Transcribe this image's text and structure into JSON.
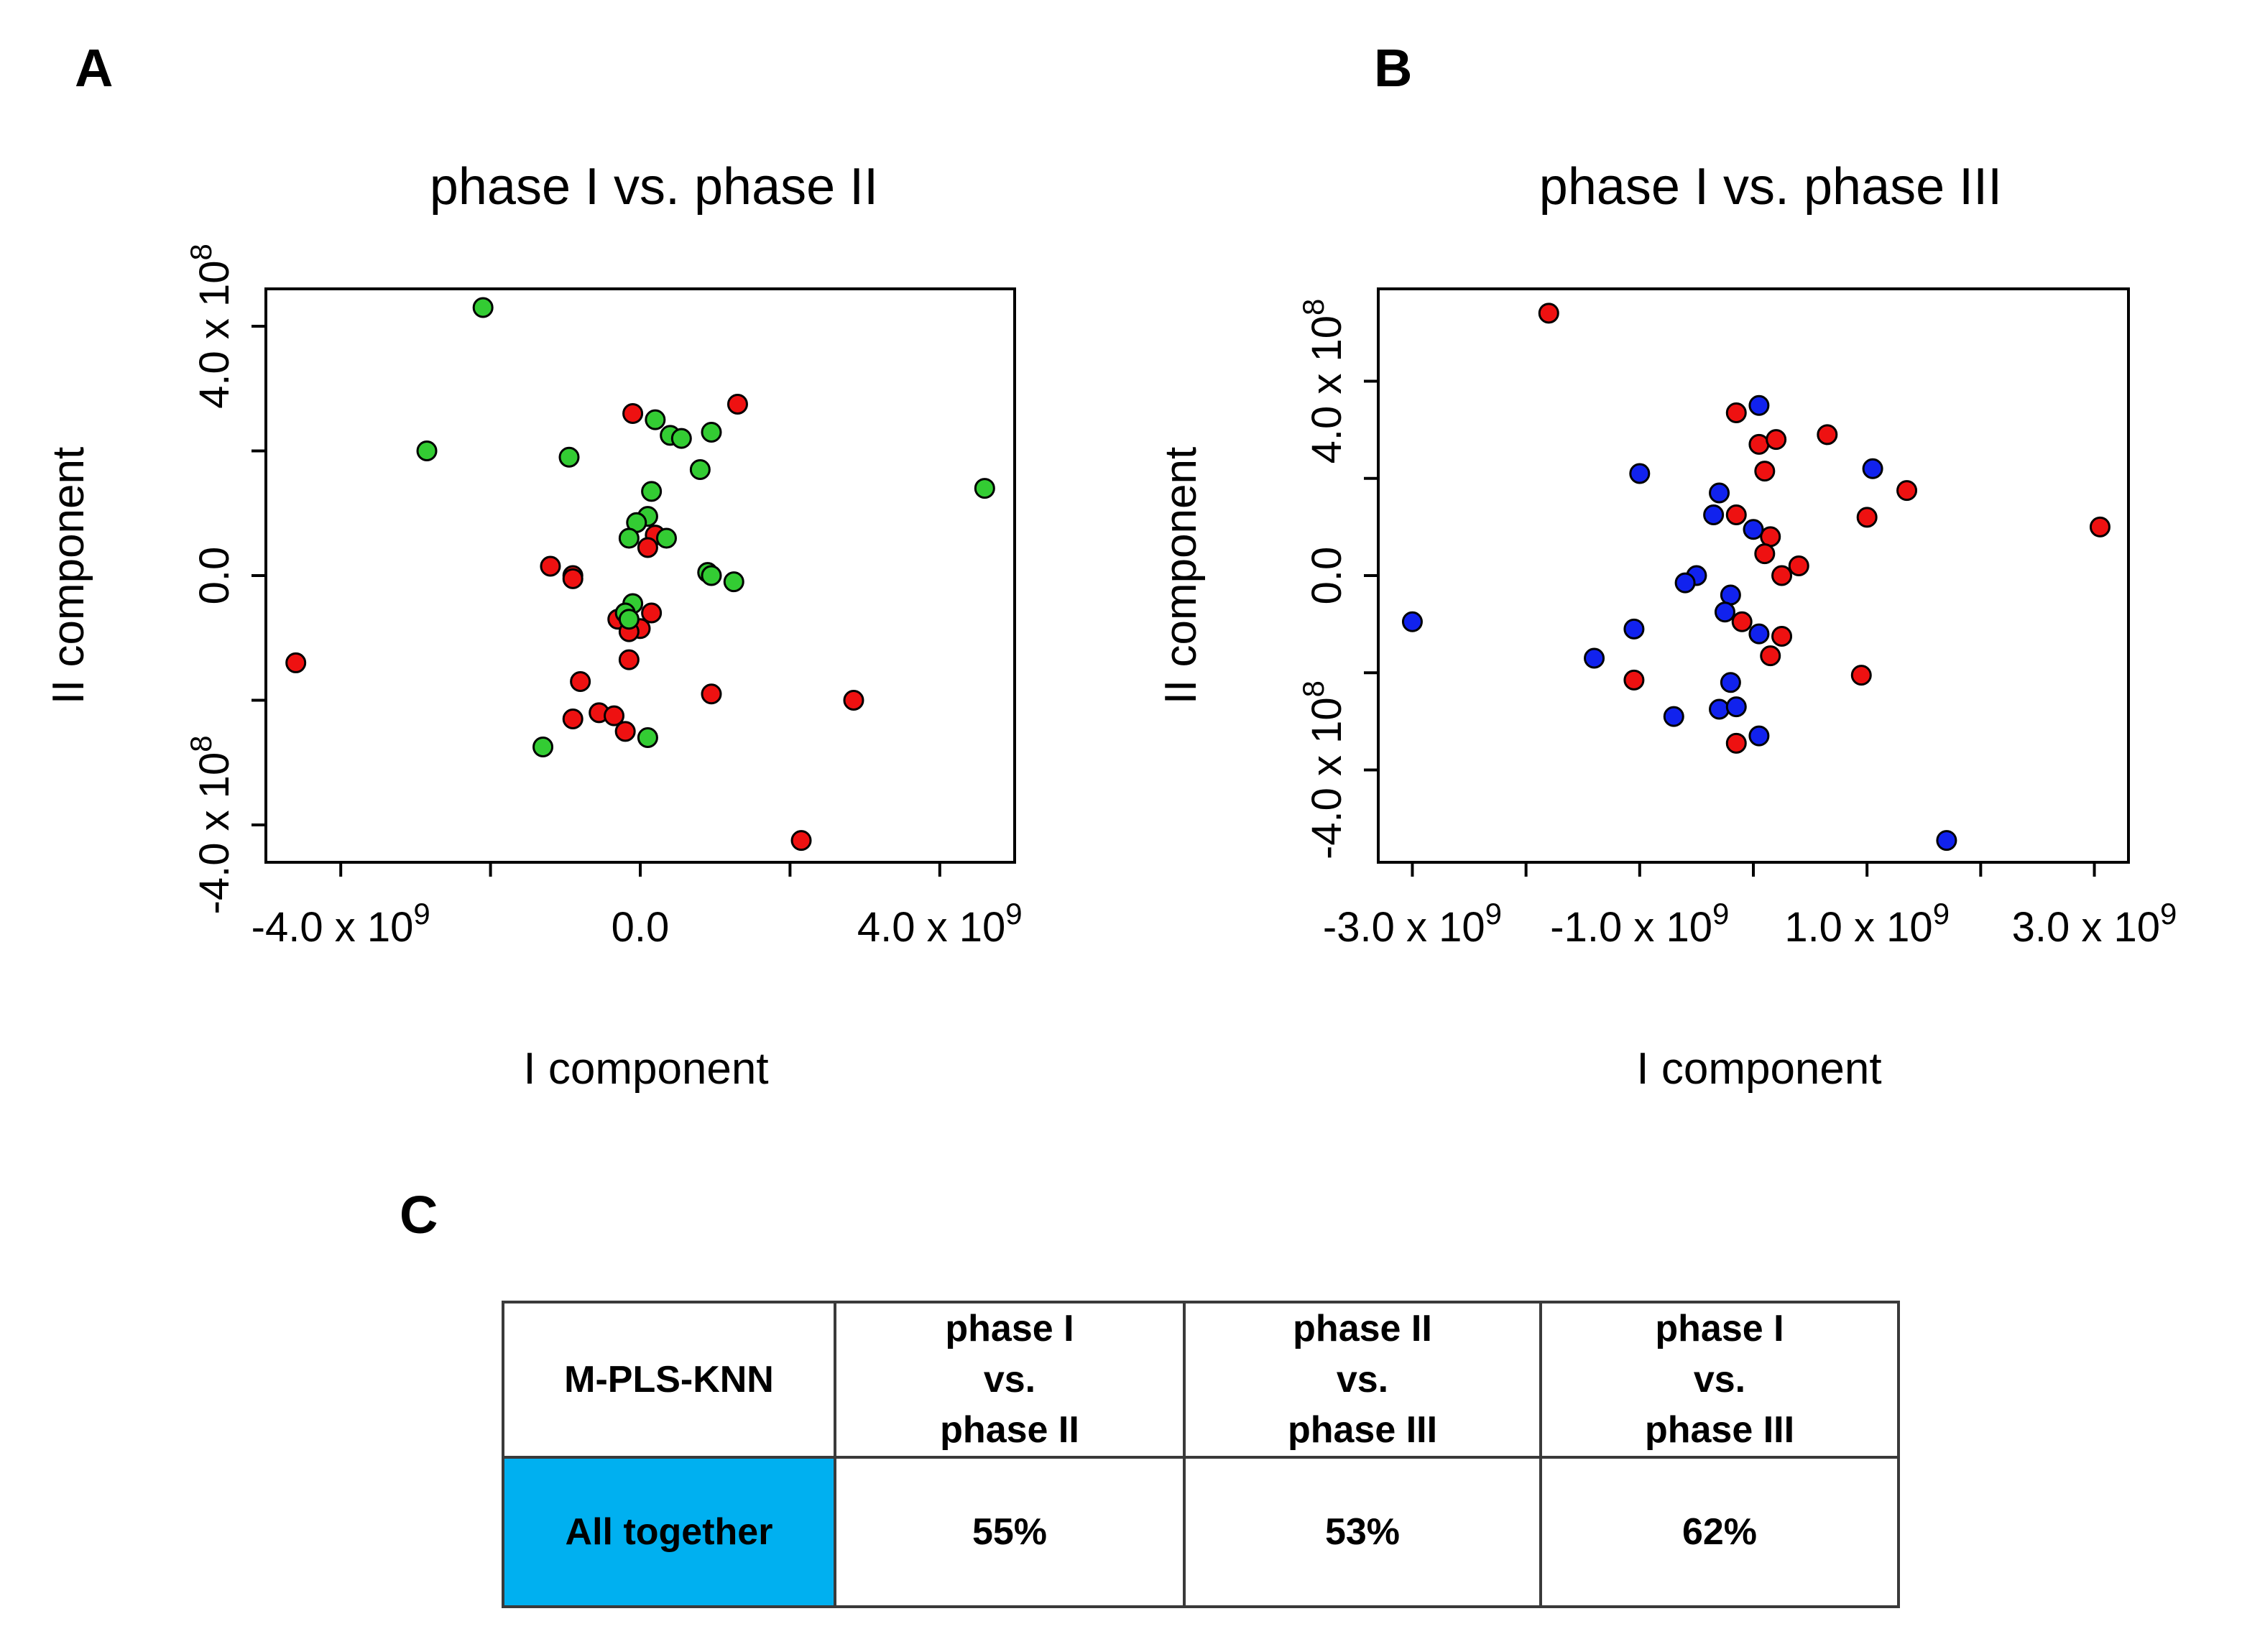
{
  "panel_labels": {
    "a": "A",
    "b": "B",
    "c": "C"
  },
  "colors": {
    "red": "#ee1111",
    "green": "#33cc33",
    "blue": "#1122ee",
    "highlight": "#00b0f0"
  },
  "chart_data": [
    {
      "type": "scatter",
      "title": "phase I vs. phase II",
      "xlabel": "I component",
      "ylabel": "II component",
      "xlim": [
        -5000000000.0,
        5000000000.0
      ],
      "ylim": [
        -460000000.0,
        460000000.0
      ],
      "xticks": [
        {
          "value": -4000000000.0,
          "mantissa": "-4.0 x 10",
          "exp": "9"
        },
        {
          "value": -2000000000.0,
          "mantissa": "",
          "exp": ""
        },
        {
          "value": 0,
          "mantissa": "0.0",
          "exp": ""
        },
        {
          "value": 2000000000.0,
          "mantissa": "",
          "exp": ""
        },
        {
          "value": 4000000000.0,
          "mantissa": "4.0 x 10",
          "exp": "9"
        }
      ],
      "yticks": [
        {
          "value": -400000000.0,
          "mantissa": "-4.0 x 10",
          "exp": "8"
        },
        {
          "value": -200000000.0,
          "mantissa": "",
          "exp": ""
        },
        {
          "value": 0,
          "mantissa": "0.0",
          "exp": ""
        },
        {
          "value": 200000000.0,
          "mantissa": "",
          "exp": ""
        },
        {
          "value": 400000000.0,
          "mantissa": "4.0 x 10",
          "exp": "8"
        }
      ],
      "series": [
        {
          "color": "red",
          "points": [
            [
              -4600000000.0,
              -140000000.0
            ],
            [
              -100000000.0,
              260000000.0
            ],
            [
              1300000000.0,
              275000000.0
            ],
            [
              200000000.0,
              65000000.0
            ],
            [
              100000000.0,
              45000000.0
            ],
            [
              -1200000000.0,
              15000000.0
            ],
            [
              -900000000.0,
              0.0
            ],
            [
              -900000000.0,
              -5000000.0
            ],
            [
              150000000.0,
              -60000000.0
            ],
            [
              -300000000.0,
              -70000000.0
            ],
            [
              0.0,
              -85000000.0
            ],
            [
              -150000000.0,
              -90000000.0
            ],
            [
              -150000000.0,
              -135000000.0
            ],
            [
              -800000000.0,
              -170000000.0
            ],
            [
              950000000.0,
              -190000000.0
            ],
            [
              2850000000.0,
              -200000000.0
            ],
            [
              -550000000.0,
              -220000000.0
            ],
            [
              -350000000.0,
              -225000000.0
            ],
            [
              -900000000.0,
              -230000000.0
            ],
            [
              -200000000.0,
              -250000000.0
            ],
            [
              2150000000.0,
              -425000000.0
            ]
          ]
        },
        {
          "color": "green",
          "points": [
            [
              -2100000000.0,
              430000000.0
            ],
            [
              -2850000000.0,
              200000000.0
            ],
            [
              -950000000.0,
              190000000.0
            ],
            [
              200000000.0,
              250000000.0
            ],
            [
              400000000.0,
              225000000.0
            ],
            [
              550000000.0,
              220000000.0
            ],
            [
              950000000.0,
              230000000.0
            ],
            [
              800000000.0,
              170000000.0
            ],
            [
              4600000000.0,
              140000000.0
            ],
            [
              150000000.0,
              135000000.0
            ],
            [
              100000000.0,
              95000000.0
            ],
            [
              -50000000.0,
              85000000.0
            ],
            [
              -150000000.0,
              60000000.0
            ],
            [
              350000000.0,
              60000000.0
            ],
            [
              900000000.0,
              5000000.0
            ],
            [
              950000000.0,
              0.0
            ],
            [
              1250000000.0,
              -10000000.0
            ],
            [
              -100000000.0,
              -45000000.0
            ],
            [
              -200000000.0,
              -60000000.0
            ],
            [
              -150000000.0,
              -70000000.0
            ],
            [
              100000000.0,
              -260000000.0
            ],
            [
              -1300000000.0,
              -275000000.0
            ]
          ]
        }
      ]
    },
    {
      "type": "scatter",
      "title": "phase I vs. phase III",
      "xlabel": "I component",
      "ylabel": "II component",
      "xlim": [
        -3300000000.0,
        3300000000.0
      ],
      "ylim": [
        -590000000.0,
        590000000.0
      ],
      "xticks": [
        {
          "value": -3000000000.0,
          "mantissa": "-3.0 x 10",
          "exp": "9"
        },
        {
          "value": -2000000000.0,
          "mantissa": "",
          "exp": ""
        },
        {
          "value": -1000000000.0,
          "mantissa": "-1.0 x 10",
          "exp": "9"
        },
        {
          "value": 0,
          "mantissa": "",
          "exp": ""
        },
        {
          "value": 1000000000.0,
          "mantissa": "1.0 x 10",
          "exp": "9"
        },
        {
          "value": 2000000000.0,
          "mantissa": "",
          "exp": ""
        },
        {
          "value": 3000000000.0,
          "mantissa": "3.0 x 10",
          "exp": "9"
        }
      ],
      "yticks": [
        {
          "value": -400000000.0,
          "mantissa": "-4.0 x 10",
          "exp": "8"
        },
        {
          "value": -200000000.0,
          "mantissa": "",
          "exp": ""
        },
        {
          "value": 0,
          "mantissa": "0.0",
          "exp": ""
        },
        {
          "value": 200000000.0,
          "mantissa": "",
          "exp": ""
        },
        {
          "value": 400000000.0,
          "mantissa": "4.0 x 10",
          "exp": "8"
        }
      ],
      "series": [
        {
          "color": "red",
          "points": [
            [
              -1800000000.0,
              540000000.0
            ],
            [
              -150000000.0,
              335000000.0
            ],
            [
              650000000.0,
              290000000.0
            ],
            [
              50000000.0,
              270000000.0
            ],
            [
              200000000.0,
              280000000.0
            ],
            [
              100000000.0,
              215000000.0
            ],
            [
              1350000000.0,
              175000000.0
            ],
            [
              -150000000.0,
              125000000.0
            ],
            [
              1000000000.0,
              120000000.0
            ],
            [
              3050000000.0,
              100000000.0
            ],
            [
              150000000.0,
              80000000.0
            ],
            [
              100000000.0,
              45000000.0
            ],
            [
              400000000.0,
              20000000.0
            ],
            [
              250000000.0,
              0.0
            ],
            [
              -100000000.0,
              -95000000.0
            ],
            [
              250000000.0,
              -125000000.0
            ],
            [
              150000000.0,
              -165000000.0
            ],
            [
              950000000.0,
              -205000000.0
            ],
            [
              -1050000000.0,
              -215000000.0
            ],
            [
              -150000000.0,
              -345000000.0
            ]
          ]
        },
        {
          "color": "blue",
          "points": [
            [
              -3000000000.0,
              -95000000.0
            ],
            [
              50000000.0,
              350000000.0
            ],
            [
              -1000000000.0,
              210000000.0
            ],
            [
              1050000000.0,
              220000000.0
            ],
            [
              -300000000.0,
              170000000.0
            ],
            [
              -350000000.0,
              125000000.0
            ],
            [
              0.0,
              95000000.0
            ],
            [
              -500000000.0,
              0.0
            ],
            [
              -600000000.0,
              -15000000.0
            ],
            [
              -200000000.0,
              -40000000.0
            ],
            [
              -250000000.0,
              -75000000.0
            ],
            [
              -1050000000.0,
              -110000000.0
            ],
            [
              50000000.0,
              -120000000.0
            ],
            [
              -1400000000.0,
              -170000000.0
            ],
            [
              -200000000.0,
              -220000000.0
            ],
            [
              -700000000.0,
              -290000000.0
            ],
            [
              -300000000.0,
              -275000000.0
            ],
            [
              -150000000.0,
              -270000000.0
            ],
            [
              50000000.0,
              -330000000.0
            ],
            [
              1700000000.0,
              -545000000.0
            ]
          ]
        }
      ]
    }
  ],
  "table": {
    "corner": "M-PLS-KNN",
    "headers": [
      [
        "phase I",
        "vs.",
        "phase II"
      ],
      [
        "phase II",
        "vs.",
        "phase III"
      ],
      [
        "phase I",
        "vs.",
        "phase III"
      ]
    ],
    "row_label": "All together",
    "values": [
      "55%",
      "53%",
      "62%"
    ]
  }
}
